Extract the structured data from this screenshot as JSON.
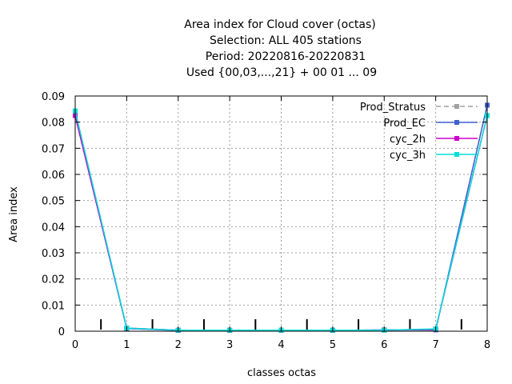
{
  "chart_data": {
    "type": "line",
    "title_lines": [
      "Area index  for Cloud cover (octas)",
      "Selection: ALL    405 stations",
      "Period: 20220816-20220831",
      "Used {00,03,...,21} + 00 01 ... 09"
    ],
    "xlabel": "classes octas",
    "ylabel": "Area index",
    "xlim": [
      0,
      8
    ],
    "ylim": [
      0,
      0.09
    ],
    "x_ticks": [
      "0",
      "1",
      "2",
      "3",
      "4",
      "5",
      "6",
      "7",
      "8"
    ],
    "y_ticks": [
      "0",
      "0.01",
      "0.02",
      "0.03",
      "0.04",
      "0.05",
      "0.06",
      "0.07",
      "0.08",
      "0.09"
    ],
    "grid": true,
    "legend_position": "top-right",
    "x": [
      0,
      1,
      2,
      3,
      4,
      5,
      6,
      7,
      8
    ],
    "series": [
      {
        "name": "Prod_Stratus",
        "color": "#a0a0a0",
        "dashed": true,
        "values": [
          0.0825,
          0.001,
          0.0003,
          0.0003,
          0.0003,
          0.0003,
          0.0005,
          0.0005,
          0.0865
        ]
      },
      {
        "name": "Prod_EC",
        "color": "#4060d0",
        "dashed": false,
        "values": [
          0.0825,
          0.001,
          0.0003,
          0.0003,
          0.0003,
          0.0003,
          0.0005,
          0.0005,
          0.0865
        ]
      },
      {
        "name": "cyc_2h",
        "color": "#cc00cc",
        "dashed": false,
        "values": [
          0.0825,
          0.0012,
          0.0004,
          0.0004,
          0.0004,
          0.0004,
          0.0004,
          0.0007,
          0.0825
        ]
      },
      {
        "name": "cyc_3h",
        "color": "#00e0d8",
        "dashed": false,
        "values": [
          0.0843,
          0.0012,
          0.0004,
          0.0004,
          0.0004,
          0.0004,
          0.0004,
          0.0009,
          0.0825
        ]
      }
    ],
    "minor_tick_x": [
      0.5,
      1.5,
      2.5,
      3.5,
      4.5,
      5.5,
      6.5,
      7.5
    ]
  }
}
